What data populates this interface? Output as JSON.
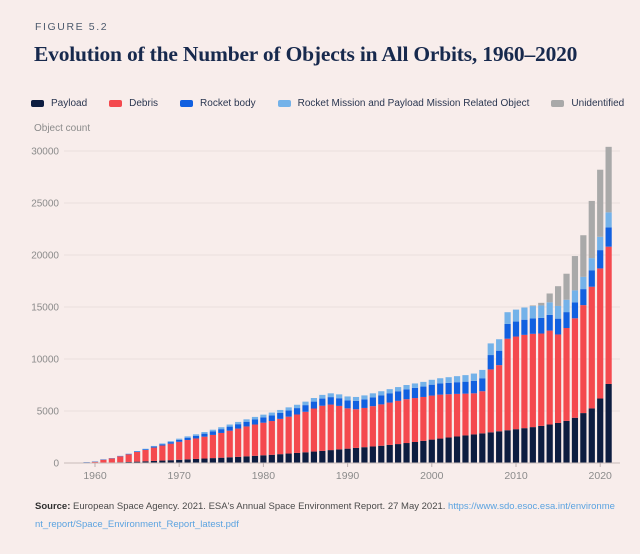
{
  "figure_label": "FIGURE 5.2",
  "title": "Evolution of the Number of Objects in All Orbits, 1960–2020",
  "source": {
    "prefix": "Source:",
    "text": "European Space Agency. 2021. ESA's Annual Space Environment Report. 27 May 2021.",
    "link": "https://www.sdo.esoc.esa.int/environment_report/Space_Environment_Report_latest.pdf"
  },
  "colors": {
    "background": "#f8edeb",
    "title": "#17294d",
    "figure_label": "#4c5a6d",
    "gridline": "#eadedc",
    "axis_line": "#c9bbb9",
    "tick_mark": "#bdb0ae",
    "axis_text": "#8b8b8b",
    "link": "#5ba3e0"
  },
  "legend": [
    {
      "id": "payload",
      "label": "Payload",
      "color": "#0d1d40"
    },
    {
      "id": "debris",
      "label": "Debris",
      "color": "#f4494e"
    },
    {
      "id": "rocket-body",
      "label": "Rocket body",
      "color": "#1160e0"
    },
    {
      "id": "mission-related",
      "label": "Rocket Mission and Payload Mission Related Object",
      "color": "#74b2e9"
    },
    {
      "id": "unidentified",
      "label": "Unidentified",
      "color": "#a9a9a9"
    }
  ],
  "chart_data": {
    "type": "bar",
    "stacked": true,
    "title": "Evolution of the Number of Objects in All Orbits, 1960–2020",
    "xlabel": "",
    "ylabel": "Object count",
    "ylim": [
      0,
      30000
    ],
    "yticks": [
      0,
      5000,
      10000,
      15000,
      20000,
      25000,
      30000
    ],
    "xticks": [
      1960,
      1970,
      1980,
      1990,
      2000,
      2010,
      2020
    ],
    "grid": "horizontal",
    "legend_position": "top",
    "years": [
      1957,
      1958,
      1959,
      1960,
      1961,
      1962,
      1963,
      1964,
      1965,
      1966,
      1967,
      1968,
      1969,
      1970,
      1971,
      1972,
      1973,
      1974,
      1975,
      1976,
      1977,
      1978,
      1979,
      1980,
      1981,
      1982,
      1983,
      1984,
      1985,
      1986,
      1987,
      1988,
      1989,
      1990,
      1991,
      1992,
      1993,
      1994,
      1995,
      1996,
      1997,
      1998,
      1999,
      2000,
      2001,
      2002,
      2003,
      2004,
      2005,
      2006,
      2007,
      2008,
      2009,
      2010,
      2011,
      2012,
      2013,
      2014,
      2015,
      2016,
      2017,
      2018,
      2019,
      2020,
      2021
    ],
    "series": [
      {
        "name": "Payload",
        "color": "#0d1d40",
        "values": [
          2,
          4,
          8,
          18,
          30,
          50,
          75,
          100,
          130,
          165,
          200,
          235,
          270,
          310,
          350,
          390,
          430,
          470,
          510,
          550,
          590,
          640,
          690,
          740,
          790,
          850,
          910,
          970,
          1030,
          1100,
          1170,
          1240,
          1310,
          1380,
          1450,
          1520,
          1590,
          1660,
          1740,
          1820,
          1920,
          2020,
          2130,
          2250,
          2350,
          2450,
          2550,
          2650,
          2750,
          2850,
          2950,
          3050,
          3150,
          3250,
          3350,
          3450,
          3570,
          3700,
          3850,
          4050,
          4350,
          4800,
          5250,
          6200,
          7600
        ]
      },
      {
        "name": "Debris",
        "color": "#f4494e",
        "values": [
          1,
          12,
          73,
          117,
          298,
          398,
          569,
          735,
          930,
          1085,
          1280,
          1445,
          1585,
          1730,
          1860,
          1970,
          2100,
          2230,
          2380,
          2555,
          2720,
          2875,
          3010,
          3135,
          3245,
          3395,
          3545,
          3695,
          3895,
          4140,
          4335,
          4380,
          4180,
          3875,
          3720,
          3773,
          3875,
          3977,
          4070,
          4155,
          4215,
          4225,
          4220,
          4230,
          4225,
          4160,
          4095,
          4020,
          3950,
          4050,
          6050,
          6360,
          8800,
          8910,
          8970,
          8970,
          8880,
          9030,
          8510,
          8930,
          9565,
          10380,
          11700,
          12510,
          13200
        ]
      },
      {
        "name": "Rocket body",
        "color": "#1160e0",
        "values": [
          1,
          3,
          6,
          10,
          14,
          20,
          28,
          40,
          55,
          75,
          100,
          125,
          155,
          190,
          225,
          260,
          295,
          330,
          365,
          395,
          425,
          455,
          485,
          515,
          540,
          565,
          590,
          615,
          640,
          665,
          690,
          715,
          740,
          770,
          800,
          825,
          850,
          875,
          900,
          925,
          950,
          975,
          1000,
          1050,
          1075,
          1100,
          1125,
          1150,
          1200,
          1250,
          1380,
          1390,
          1420,
          1440,
          1460,
          1480,
          1500,
          1510,
          1520,
          1530,
          1535,
          1540,
          1560,
          1760,
          1860
        ]
      },
      {
        "name": "Rocket Mission and Payload Mission Related Object",
        "color": "#74b2e9",
        "values": [
          0,
          1,
          3,
          5,
          8,
          12,
          18,
          25,
          35,
          45,
          60,
          75,
          90,
          110,
          125,
          140,
          155,
          170,
          185,
          200,
          215,
          230,
          245,
          260,
          275,
          290,
          305,
          320,
          335,
          345,
          355,
          365,
          370,
          375,
          380,
          382,
          385,
          388,
          390,
          400,
          415,
          430,
          450,
          470,
          500,
          540,
          580,
          630,
          700,
          800,
          1120,
          1100,
          1130,
          1150,
          1170,
          1190,
          1200,
          1210,
          1220,
          1190,
          1150,
          1180,
          1190,
          1280,
          1440
        ]
      },
      {
        "name": "Unidentified",
        "color": "#a9a9a9",
        "values": [
          0,
          0,
          0,
          0,
          0,
          0,
          0,
          0,
          0,
          0,
          0,
          0,
          0,
          0,
          0,
          0,
          0,
          0,
          0,
          0,
          0,
          0,
          0,
          0,
          0,
          0,
          0,
          0,
          0,
          0,
          0,
          0,
          0,
          0,
          0,
          0,
          0,
          0,
          0,
          0,
          0,
          0,
          0,
          0,
          0,
          0,
          0,
          0,
          0,
          0,
          0,
          0,
          0,
          0,
          0,
          60,
          250,
          850,
          1900,
          2500,
          3300,
          4000,
          5500,
          6450,
          6300
        ]
      }
    ]
  }
}
